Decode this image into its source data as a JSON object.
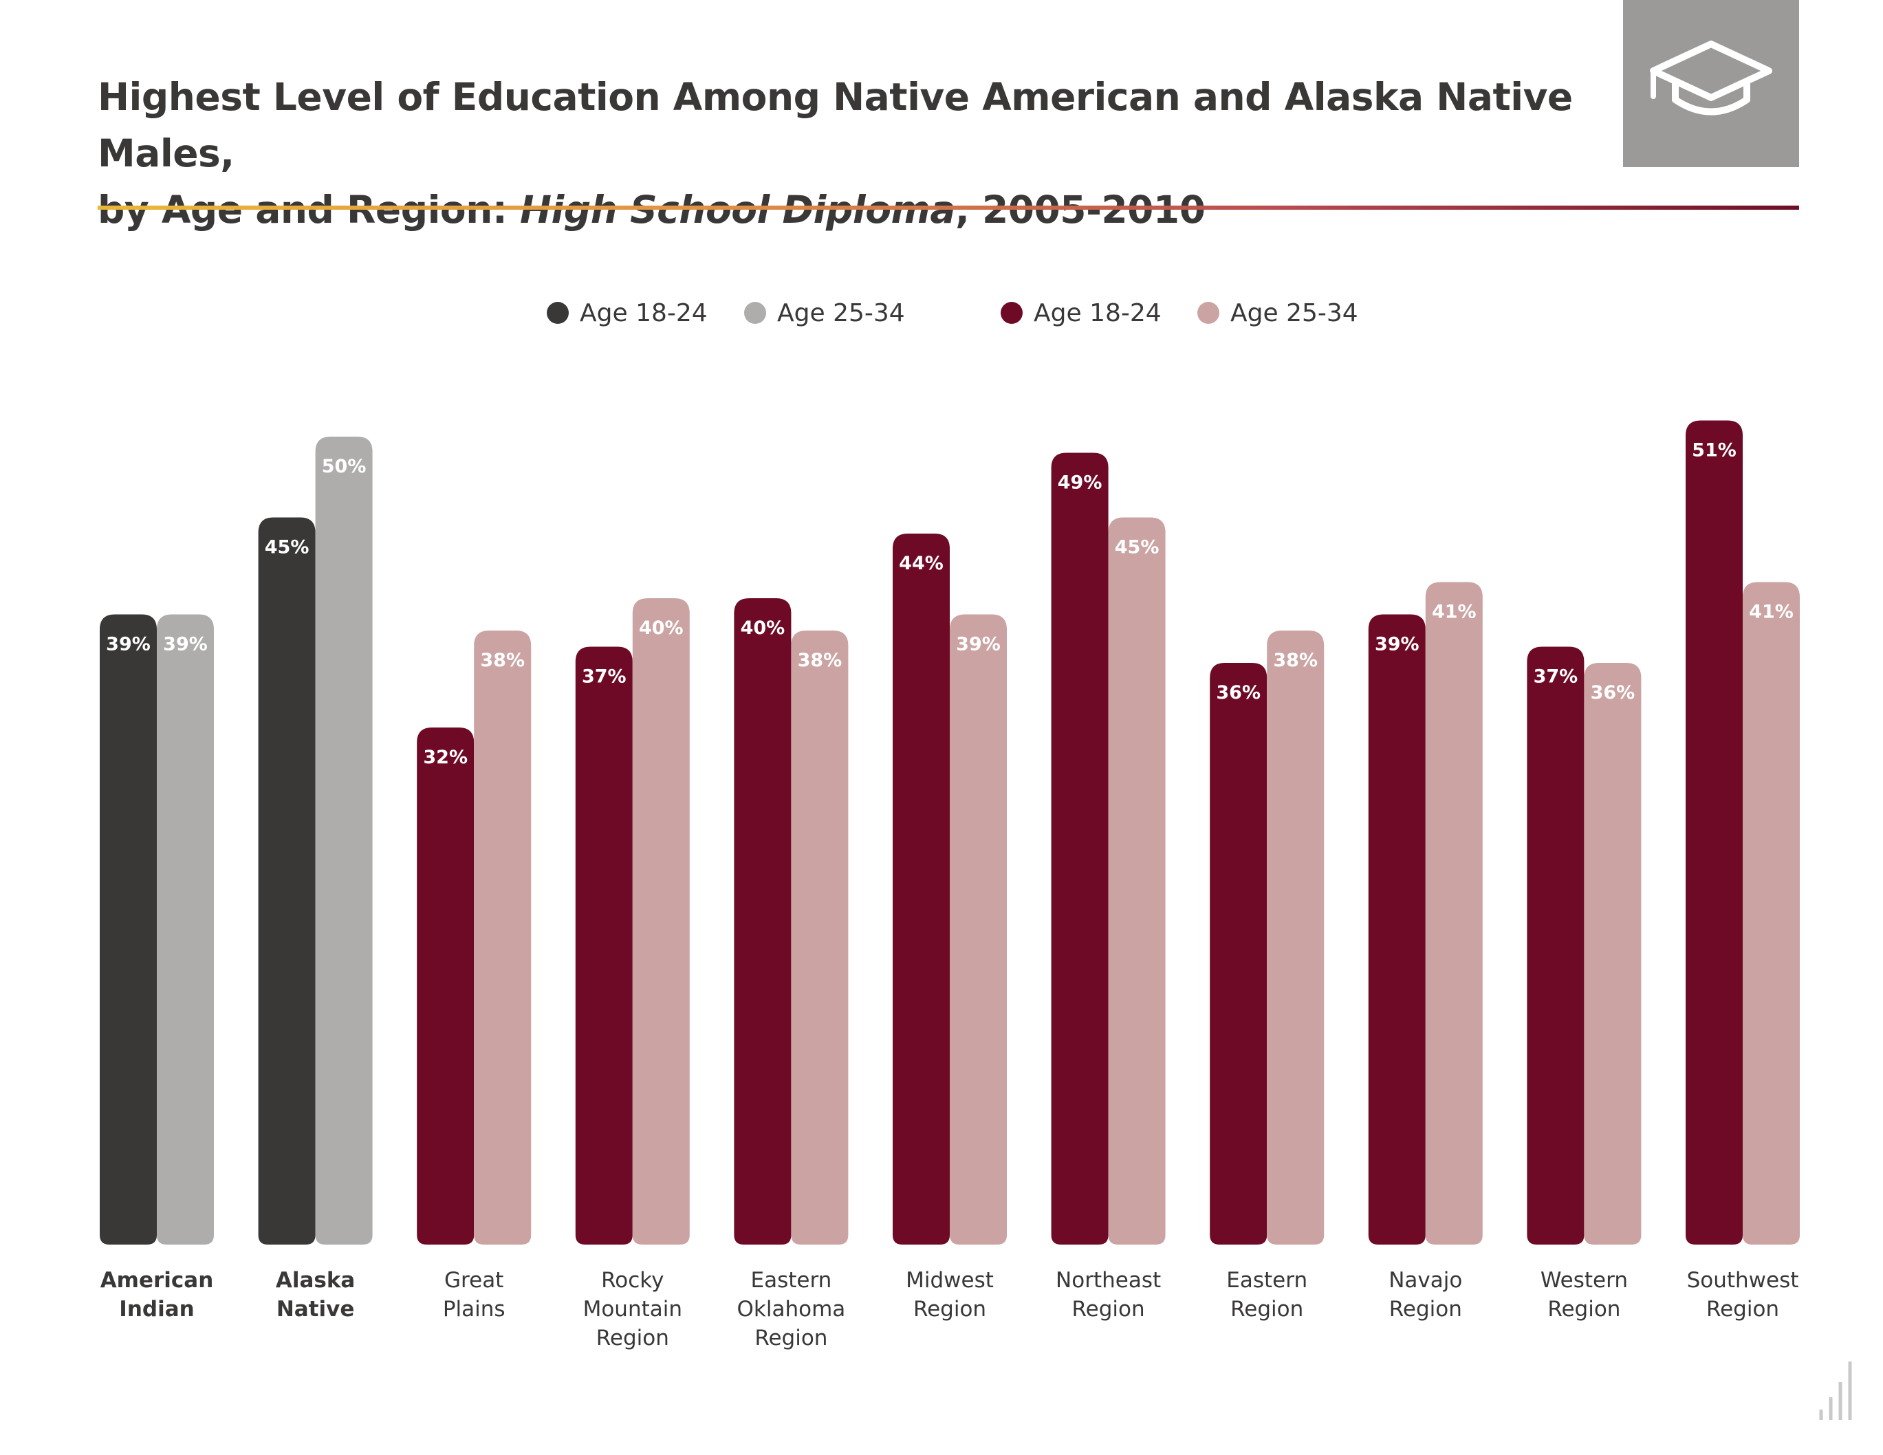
{
  "header": {
    "title_line1": "Highest Level of Education Among Native American and Alaska Native Males,",
    "title_line2_prefix": "by Age and Region: ",
    "title_line2_italic": "High School Diploma",
    "title_line2_suffix": ", 2005-2010",
    "icon": "graduation-cap-icon"
  },
  "legend": [
    {
      "label": "Age 18-24",
      "color": "#3a3837"
    },
    {
      "label": "Age 25-34",
      "color": "#aeadac"
    },
    {
      "label": "Age 18-24",
      "color": "#6e0a25"
    },
    {
      "label": "Age 25-34",
      "color": "#cba3a3"
    }
  ],
  "chart_data": {
    "type": "bar",
    "unit": "%",
    "ylim": [
      0,
      100
    ],
    "grid": false,
    "legend_position": "top-center",
    "categories": [
      {
        "label": "American Indian",
        "lines": [
          "American",
          "Indian"
        ],
        "bold": true,
        "group": "national"
      },
      {
        "label": "Alaska Native",
        "lines": [
          "Alaska",
          "Native"
        ],
        "bold": true,
        "group": "national"
      },
      {
        "label": "Great Plains",
        "lines": [
          "Great",
          "Plains"
        ],
        "bold": false,
        "group": "region"
      },
      {
        "label": "Rocky Mountain Region",
        "lines": [
          "Rocky",
          "Mountain",
          "Region"
        ],
        "bold": false,
        "group": "region"
      },
      {
        "label": "Eastern Oklahoma Region",
        "lines": [
          "Eastern",
          "Oklahoma",
          "Region"
        ],
        "bold": false,
        "group": "region"
      },
      {
        "label": "Midwest Region",
        "lines": [
          "Midwest",
          "Region"
        ],
        "bold": false,
        "group": "region"
      },
      {
        "label": "Northeast Region",
        "lines": [
          "Northeast",
          "Region"
        ],
        "bold": false,
        "group": "region"
      },
      {
        "label": "Eastern Region",
        "lines": [
          "Eastern",
          "Region"
        ],
        "bold": false,
        "group": "region"
      },
      {
        "label": "Navajo Region",
        "lines": [
          "Navajo",
          "Region"
        ],
        "bold": false,
        "group": "region"
      },
      {
        "label": "Western Region",
        "lines": [
          "Western",
          "Region"
        ],
        "bold": false,
        "group": "region"
      },
      {
        "label": "Southwest Region",
        "lines": [
          "Southwest",
          "Region"
        ],
        "bold": false,
        "group": "region"
      }
    ],
    "series": [
      {
        "name": "Age 18-24",
        "values": [
          39,
          45,
          32,
          37,
          40,
          44,
          49,
          36,
          39,
          37,
          51
        ]
      },
      {
        "name": "Age 25-34",
        "values": [
          39,
          50,
          38,
          40,
          38,
          39,
          45,
          38,
          41,
          36,
          41
        ]
      }
    ],
    "data_labels": [
      [
        "39%",
        "45%",
        "32%",
        "37%",
        "40%",
        "44%",
        "49%",
        "36%",
        "39%",
        "37%",
        "51%"
      ],
      [
        "39%",
        "50%",
        "38%",
        "40%",
        "38%",
        "39%",
        "45%",
        "38%",
        "41%",
        "36%",
        "41%"
      ]
    ],
    "colors": {
      "national_18_24": "#3a3837",
      "national_25_34": "#aeadac",
      "region_18_24": "#6e0a25",
      "region_25_34": "#cba3a3"
    }
  }
}
